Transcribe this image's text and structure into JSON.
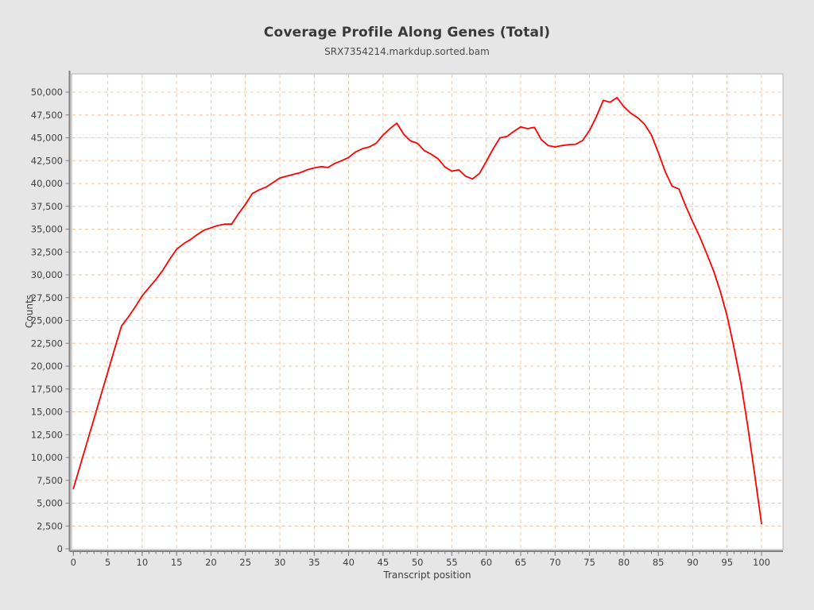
{
  "page": {
    "background_color": "#e6e6e6"
  },
  "chart_data": {
    "type": "line",
    "title": "Coverage Profile Along Genes (Total)",
    "subtitle": "SRX7354214.markdup.sorted.bam",
    "xlabel": "Transcript position",
    "ylabel": "Counts",
    "x_start": 0,
    "x_step": 1,
    "series": [
      {
        "name": "SRX7354214.markdup.sorted.bam",
        "color": "#ff0000",
        "values": [
          6600,
          9150,
          11700,
          14250,
          16800,
          19350,
          21900,
          24400,
          25400,
          26500,
          27700,
          28600,
          29500,
          30500,
          31700,
          32800,
          33400,
          33850,
          34400,
          34900,
          35150,
          35400,
          35550,
          35550,
          36700,
          37700,
          38900,
          39300,
          39600,
          40100,
          40600,
          40800,
          41000,
          41200,
          41500,
          41700,
          41850,
          41750,
          42200,
          42500,
          42850,
          43450,
          43800,
          44000,
          44400,
          45300,
          46000,
          46600,
          45400,
          44650,
          44400,
          43600,
          43200,
          42700,
          41800,
          41350,
          41500,
          40800,
          40500,
          41100,
          42400,
          43800,
          45000,
          45150,
          45700,
          46200,
          46000,
          46150,
          44800,
          44150,
          44000,
          44150,
          44250,
          44300,
          44700,
          45800,
          47300,
          49100,
          48900,
          49400,
          48400,
          47700,
          47200,
          46500,
          45300,
          43400,
          41300,
          39700,
          39400,
          37500,
          35800,
          34200,
          32400,
          30500,
          28200,
          25500,
          22000,
          18200,
          13400,
          8200,
          2750
        ]
      }
    ],
    "xlim": [
      -0.3,
      103.2
    ],
    "ylim": [
      0,
      52000
    ],
    "x_ticks": [
      0,
      5,
      10,
      15,
      20,
      25,
      30,
      35,
      40,
      45,
      50,
      55,
      60,
      65,
      70,
      75,
      80,
      85,
      90,
      95,
      100
    ],
    "x_minor_tick_step": 1,
    "y_ticks": [
      0,
      2500,
      5000,
      7500,
      10000,
      12500,
      15000,
      17500,
      20000,
      22500,
      25000,
      27500,
      30000,
      32500,
      35000,
      37500,
      40000,
      42500,
      45000,
      47500,
      50000
    ],
    "y_tick_labels": [
      "0",
      "2,500",
      "5,000",
      "7,500",
      "10,000",
      "12,500",
      "15,000",
      "17,500",
      "20,000",
      "22,500",
      "25,000",
      "27,500",
      "30,000",
      "32,500",
      "35,000",
      "37,500",
      "40,000",
      "42,500",
      "45,000",
      "47,500",
      "50,000"
    ],
    "grid": {
      "show": true,
      "color": "#f3c49c",
      "dash": "4,4"
    },
    "legend": "none",
    "line_width": 1.8,
    "plot_bg": "#ffffff",
    "plot_border_color": "#b3b3b3",
    "axis_color": "#7f7f7f",
    "tick_text_color": "#3f3f3f"
  }
}
